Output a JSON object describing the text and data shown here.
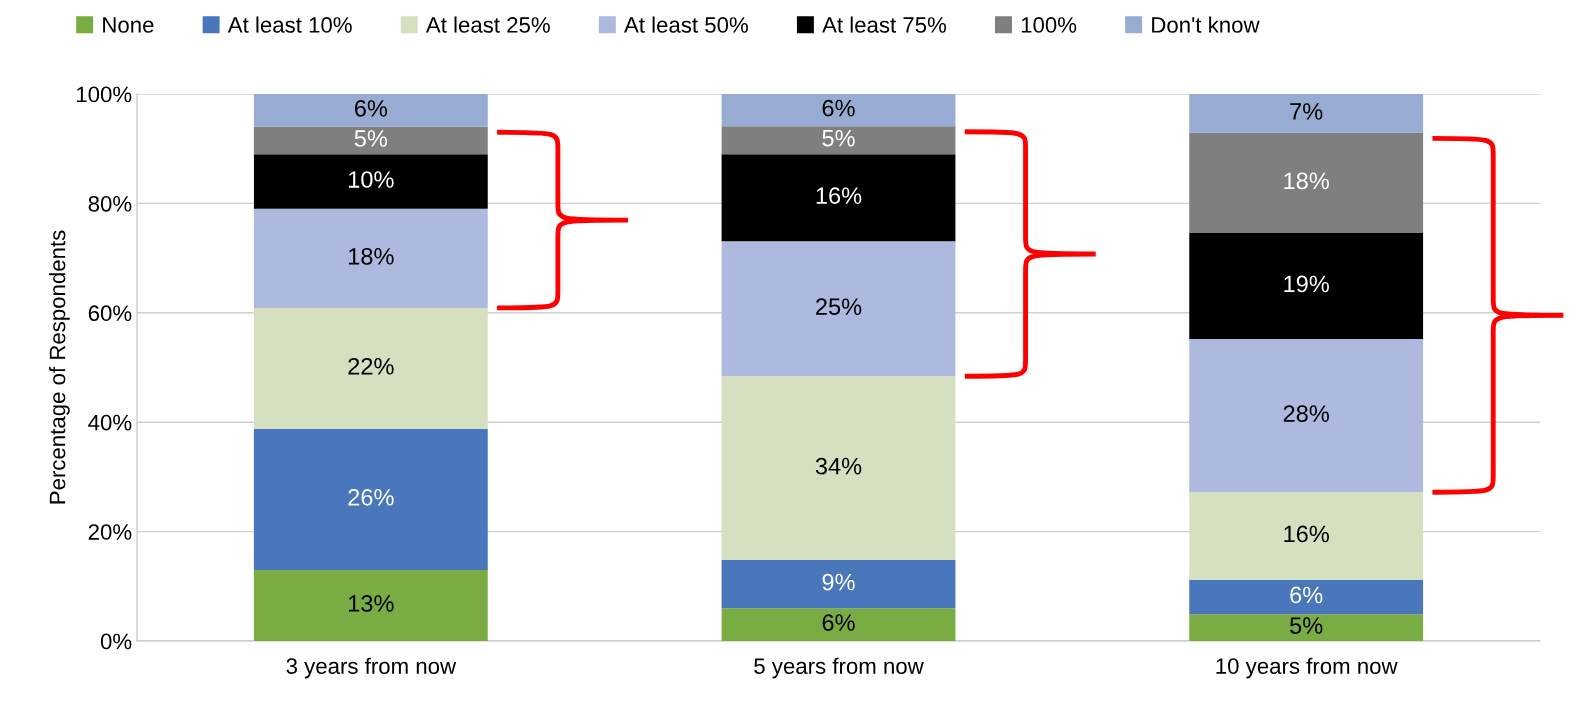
{
  "chart_data": {
    "type": "bar",
    "stacked": true,
    "ylabel": "Percentage of Respondents",
    "categories": [
      "3 years from now",
      "5 years from now",
      "10 years from now"
    ],
    "series": [
      {
        "name": "None",
        "color": "#7aac44",
        "values": [
          13.0,
          6.0,
          4.9
        ],
        "value_labels": [
          "13%",
          "6%",
          "5%"
        ]
      },
      {
        "name": "At least 10%",
        "color": "#4a77bb",
        "values": [
          25.8,
          8.8,
          6.3
        ],
        "value_labels": [
          "26%",
          "9%",
          "6%"
        ]
      },
      {
        "name": "At least 25%",
        "color": "#d4e0bf",
        "values": [
          22.1,
          33.6,
          16.0
        ],
        "value_labels": [
          "22%",
          "34%",
          "16%"
        ]
      },
      {
        "name": "At least 50%",
        "color": "#adb9df",
        "values": [
          18.1,
          24.7,
          28.0
        ],
        "value_labels": [
          "18%",
          "25%",
          "28%"
        ]
      },
      {
        "name": "At least 75%",
        "color": "#000000",
        "values": [
          10.0,
          15.9,
          19.4
        ],
        "value_labels": [
          "10%",
          "16%",
          "19%"
        ]
      },
      {
        "name": "100%",
        "color": "#7f7f7f",
        "values": [
          5.0,
          5.1,
          18.3
        ],
        "value_labels": [
          "5%",
          "5%",
          "18%"
        ]
      },
      {
        "name": "Don't know",
        "color": "#97abd3",
        "values": [
          6.0,
          5.9,
          7.1
        ],
        "value_labels": [
          "6%",
          "6%",
          "7%"
        ]
      }
    ],
    "ylim": [
      0,
      100
    ],
    "yticks": [
      {
        "value": 0,
        "label": "0%"
      },
      {
        "value": 20,
        "label": "20%"
      },
      {
        "value": 40,
        "label": "40%"
      },
      {
        "value": 60,
        "label": "60%"
      },
      {
        "value": 80,
        "label": "80%"
      },
      {
        "value": 100,
        "label": "100%"
      }
    ],
    "grid": "y",
    "legend": "top"
  }
}
